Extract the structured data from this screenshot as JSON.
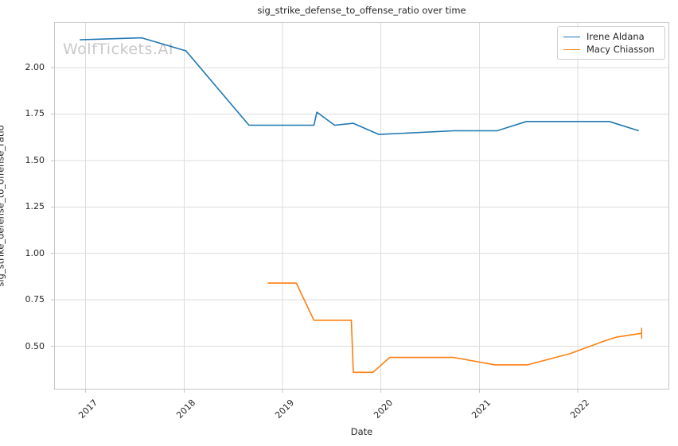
{
  "watermark": "WolfTickets.AI",
  "chart_data": {
    "type": "line",
    "title": "sig_strike_defense_to_offense_ratio over time",
    "xlabel": "Date",
    "ylabel": "sig_strike_defense_to_offense_ratio",
    "x_unit": "decimal_year",
    "xlim": [
      2016.68,
      2022.93
    ],
    "ylim": [
      0.267,
      2.244
    ],
    "grid": true,
    "legend_position": "upper right",
    "xticks": [
      {
        "value": 2017,
        "label": "2017"
      },
      {
        "value": 2018,
        "label": "2018"
      },
      {
        "value": 2019,
        "label": "2019"
      },
      {
        "value": 2020,
        "label": "2020"
      },
      {
        "value": 2021,
        "label": "2021"
      },
      {
        "value": 2022,
        "label": "2022"
      }
    ],
    "yticks": [
      {
        "value": 0.5,
        "label": "0.50"
      },
      {
        "value": 0.75,
        "label": "0.75"
      },
      {
        "value": 1.0,
        "label": "1.00"
      },
      {
        "value": 1.25,
        "label": "1.25"
      },
      {
        "value": 1.5,
        "label": "1.50"
      },
      {
        "value": 1.75,
        "label": "1.75"
      },
      {
        "value": 2.0,
        "label": "2.00"
      }
    ],
    "series": [
      {
        "name": "Irene Aldana",
        "color": "#1f77b4",
        "end_cap": false,
        "points": [
          [
            2016.94,
            2.15
          ],
          [
            2017.57,
            2.16
          ],
          [
            2018.02,
            2.09
          ],
          [
            2018.66,
            1.69
          ],
          [
            2019.32,
            1.69
          ],
          [
            2019.35,
            1.76
          ],
          [
            2019.53,
            1.69
          ],
          [
            2019.72,
            1.7
          ],
          [
            2019.98,
            1.64
          ],
          [
            2020.74,
            1.66
          ],
          [
            2021.18,
            1.66
          ],
          [
            2021.48,
            1.71
          ],
          [
            2022.32,
            1.71
          ],
          [
            2022.62,
            1.66
          ]
        ]
      },
      {
        "name": "Macy Chiasson",
        "color": "#ff7f0e",
        "end_cap": true,
        "points": [
          [
            2018.85,
            0.84
          ],
          [
            2019.14,
            0.84
          ],
          [
            2019.32,
            0.64
          ],
          [
            2019.7,
            0.64
          ],
          [
            2019.72,
            0.36
          ],
          [
            2019.92,
            0.36
          ],
          [
            2020.09,
            0.44
          ],
          [
            2020.74,
            0.44
          ],
          [
            2021.16,
            0.4
          ],
          [
            2021.49,
            0.4
          ],
          [
            2021.92,
            0.46
          ],
          [
            2022.28,
            0.53
          ],
          [
            2022.4,
            0.55
          ],
          [
            2022.65,
            0.57
          ]
        ]
      }
    ]
  }
}
